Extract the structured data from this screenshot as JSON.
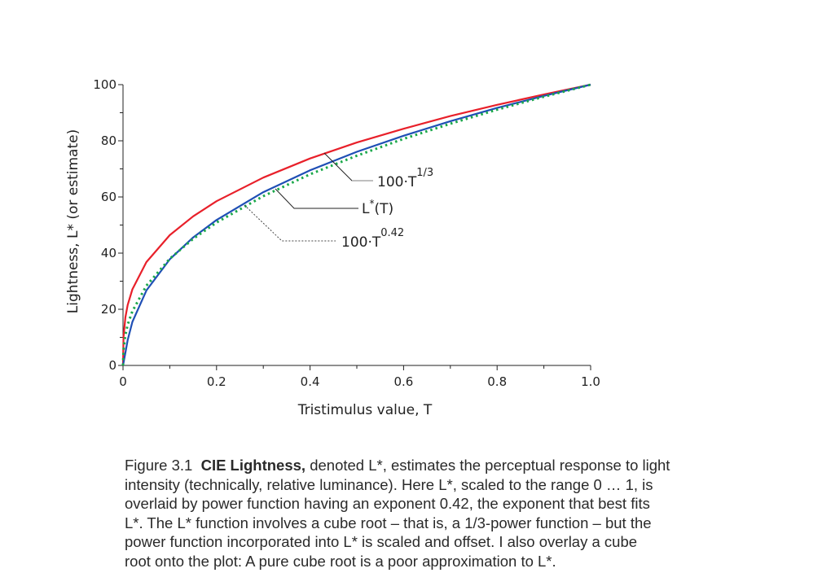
{
  "chart_data": {
    "type": "line",
    "title": "",
    "xlabel": "Tristimulus value, T",
    "ylabel": "Lightness, L* (or estimate)",
    "xlim": [
      0,
      1.0
    ],
    "ylim": [
      0,
      100
    ],
    "xticks": [
      "0",
      "0.2",
      "0.4",
      "0.6",
      "0.8",
      "1.0"
    ],
    "yticks": [
      "0",
      "20",
      "40",
      "60",
      "80",
      "100"
    ],
    "grid": false,
    "x": [
      0,
      0.001,
      0.005,
      0.01,
      0.02,
      0.05,
      0.1,
      0.15,
      0.2,
      0.3,
      0.4,
      0.5,
      0.6,
      0.7,
      0.8,
      0.9,
      1.0
    ],
    "series": [
      {
        "name": "100·T^1/3",
        "color": "#e8202a",
        "style": "solid",
        "values": [
          0,
          10,
          17.1,
          21.5,
          27.1,
          36.8,
          46.4,
          53.1,
          58.5,
          66.9,
          73.7,
          79.4,
          84.3,
          88.8,
          92.8,
          96.5,
          100
        ]
      },
      {
        "name": "L*(T)",
        "color": "#1f4fb5",
        "style": "solid",
        "values": [
          0,
          0.9,
          4.5,
          9.0,
          15.5,
          26.7,
          37.8,
          45.6,
          51.8,
          61.7,
          69.5,
          76.1,
          81.8,
          87.0,
          91.7,
          96.0,
          100
        ]
      },
      {
        "name": "100·T^0.42",
        "color": "#1aa84a",
        "style": "dotted",
        "values": [
          0,
          5.5,
          10.8,
          14.5,
          19.3,
          28.4,
          38.0,
          45.1,
          50.9,
          60.3,
          68.1,
          74.7,
          80.7,
          86.1,
          91.1,
          95.7,
          100
        ]
      }
    ],
    "annotations": {
      "cube": {
        "base": "100·T",
        "sup": "1/3"
      },
      "lstar": {
        "base": "L",
        "sup": "*",
        "paren": "(T)"
      },
      "pow": {
        "base": "100·T",
        "sup": "0.42"
      }
    }
  },
  "caption": {
    "figure_no": "Figure 3.1",
    "bold_term": "CIE Lightness,",
    "lines": [
      " denoted L*, estimates the perceptual response to light",
      "intensity (technically, relative luminance). Here L*, scaled to the range 0 … 1, is",
      "overlaid by power function having an exponent 0.42, the exponent that best fits",
      "L*. The L* function involves a cube root – that is, a 1/3-power function – but the",
      "power function incorporated into  L* is scaled and offset. I also overlay a cube",
      "root onto the plot: A pure cube root is a poor approximation to L*."
    ]
  }
}
